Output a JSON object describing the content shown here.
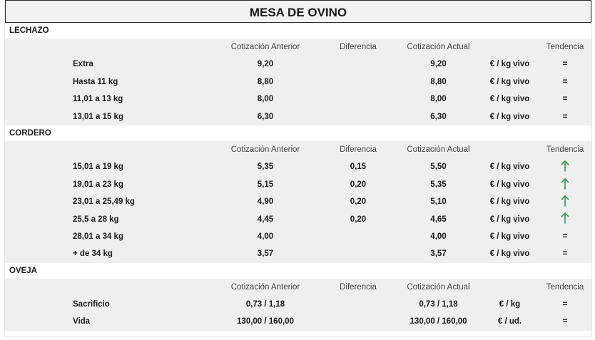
{
  "title": "MESA DE OVINO",
  "headers": {
    "prev": "Cotización Anterior",
    "diff": "Diferencia",
    "curr": "Cotización Actual",
    "trend": "Tendencia"
  },
  "sections": [
    {
      "label": "LECHAZO",
      "rows": [
        {
          "name": "Extra",
          "prev": "9,20",
          "diff": "",
          "curr": "9,20",
          "unit": "€ / kg vivo",
          "trend": "=",
          "trend_icon": "equal-icon"
        },
        {
          "name": "Hasta 11 kg",
          "prev": "8,80",
          "diff": "",
          "curr": "8,80",
          "unit": "€ / kg vivo",
          "trend": "=",
          "trend_icon": "equal-icon"
        },
        {
          "name": "11,01 a 13 kg",
          "prev": "8,00",
          "diff": "",
          "curr": "8,00",
          "unit": "€ / kg vivo",
          "trend": "=",
          "trend_icon": "equal-icon"
        },
        {
          "name": "13,01 a 15 kg",
          "prev": "6,30",
          "diff": "",
          "curr": "6,30",
          "unit": "€ / kg vivo",
          "trend": "=",
          "trend_icon": "equal-icon"
        }
      ]
    },
    {
      "label": "CORDERO",
      "rows": [
        {
          "name": "15,01 a 19 kg",
          "prev": "5,35",
          "diff": "0,15",
          "curr": "5,50",
          "unit": "€ / kg vivo",
          "trend": "",
          "trend_icon": "arrow-up-icon"
        },
        {
          "name": "19,01 a 23 kg",
          "prev": "5,15",
          "diff": "0,20",
          "curr": "5,35",
          "unit": "€ / kg vivo",
          "trend": "",
          "trend_icon": "arrow-up-icon"
        },
        {
          "name": "23,01 a 25,49 kg",
          "prev": "4,90",
          "diff": "0,20",
          "curr": "5,10",
          "unit": "€ / kg vivo",
          "trend": "",
          "trend_icon": "arrow-up-icon"
        },
        {
          "name": "25,5 a 28 kg",
          "prev": "4,45",
          "diff": "0,20",
          "curr": "4,65",
          "unit": "€ / kg vivo",
          "trend": "",
          "trend_icon": "arrow-up-icon"
        },
        {
          "name": "28,01 a 34 kg",
          "prev": "4,00",
          "diff": "",
          "curr": "4,00",
          "unit": "€ / kg vivo",
          "trend": "=",
          "trend_icon": "equal-icon"
        },
        {
          "name": "+ de 34 kg",
          "prev": "3,57",
          "diff": "",
          "curr": "3,57",
          "unit": "€ / kg vivo",
          "trend": "=",
          "trend_icon": "equal-icon"
        }
      ]
    },
    {
      "label": "OVEJA",
      "rows": [
        {
          "name": "Sacrificio",
          "prev": "0,73 / 1,18",
          "diff": "",
          "curr": "0,73 / 1,18",
          "unit": "€ / kg",
          "trend": "=",
          "trend_icon": "equal-icon"
        },
        {
          "name": "Vida",
          "prev": "130,00 / 160,00",
          "diff": "",
          "curr": "130,00 / 160,00",
          "unit": "€ / ud.",
          "trend": "=",
          "trend_icon": "equal-icon"
        }
      ]
    }
  ],
  "colors": {
    "trend_up": "#2e9b47",
    "row_band": "#efefef",
    "title_border": "#2b2b2b"
  }
}
